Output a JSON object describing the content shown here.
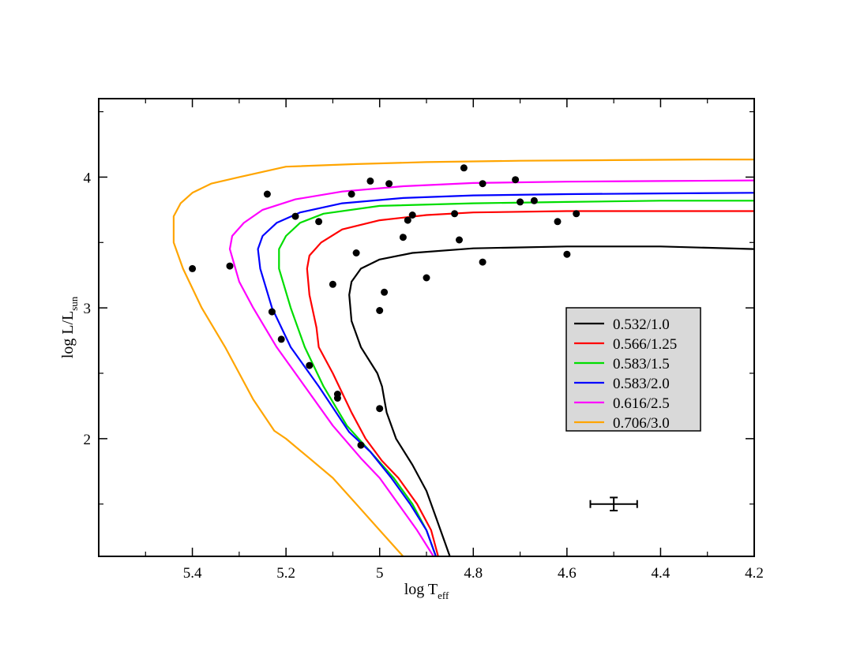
{
  "chart_data": {
    "type": "line",
    "xlabel": "log T",
    "xlabel_sub": "eff",
    "ylabel": "log L/L",
    "ylabel_sub": "sun",
    "xlim": [
      5.6,
      4.2
    ],
    "ylim": [
      1.1,
      4.6
    ],
    "x_reversed": true,
    "x_ticks": [
      5.4,
      5.2,
      5.0,
      4.8,
      4.6,
      4.4,
      4.2
    ],
    "x_tick_labels": [
      "5.4",
      "5.2",
      "5",
      "4.8",
      "4.6",
      "4.4",
      "4.2"
    ],
    "y_ticks": [
      2,
      3,
      4
    ],
    "y_tick_labels": [
      "2",
      "3",
      "4"
    ],
    "grid": false,
    "legend_position": "right-middle",
    "legend_background": "#d9d9d9",
    "series": [
      {
        "name": "0.532/1.0",
        "color": "#000000",
        "points": [
          [
            4.85,
            1.1
          ],
          [
            4.86,
            1.2
          ],
          [
            4.88,
            1.4
          ],
          [
            4.9,
            1.6
          ],
          [
            4.93,
            1.8
          ],
          [
            4.965,
            2.0
          ],
          [
            4.985,
            2.2
          ],
          [
            4.99,
            2.3
          ],
          [
            4.995,
            2.4
          ],
          [
            5.005,
            2.5
          ],
          [
            5.04,
            2.7
          ],
          [
            5.06,
            2.9
          ],
          [
            5.065,
            3.1
          ],
          [
            5.06,
            3.2
          ],
          [
            5.04,
            3.3
          ],
          [
            5.0,
            3.37
          ],
          [
            4.93,
            3.42
          ],
          [
            4.8,
            3.455
          ],
          [
            4.6,
            3.47
          ],
          [
            4.4,
            3.47
          ],
          [
            4.2,
            3.45
          ]
        ]
      },
      {
        "name": "0.566/1.25",
        "color": "#ff0000",
        "points": [
          [
            4.875,
            1.1
          ],
          [
            4.89,
            1.3
          ],
          [
            4.92,
            1.5
          ],
          [
            4.96,
            1.7
          ],
          [
            4.995,
            1.83
          ],
          [
            5.03,
            2.0
          ],
          [
            5.06,
            2.2
          ],
          [
            5.1,
            2.5
          ],
          [
            5.13,
            2.7
          ],
          [
            5.135,
            2.85
          ],
          [
            5.15,
            3.1
          ],
          [
            5.155,
            3.3
          ],
          [
            5.15,
            3.4
          ],
          [
            5.125,
            3.5
          ],
          [
            5.08,
            3.6
          ],
          [
            5.0,
            3.67
          ],
          [
            4.9,
            3.71
          ],
          [
            4.8,
            3.73
          ],
          [
            4.6,
            3.74
          ],
          [
            4.4,
            3.74
          ],
          [
            4.2,
            3.74
          ]
        ]
      },
      {
        "name": "0.583/1.5",
        "color": "#00dd00",
        "points": [
          [
            4.88,
            1.1
          ],
          [
            4.9,
            1.3
          ],
          [
            4.93,
            1.5
          ],
          [
            4.97,
            1.7
          ],
          [
            5.02,
            1.9
          ],
          [
            5.07,
            2.1
          ],
          [
            5.12,
            2.4
          ],
          [
            5.16,
            2.7
          ],
          [
            5.19,
            3.0
          ],
          [
            5.215,
            3.3
          ],
          [
            5.215,
            3.45
          ],
          [
            5.2,
            3.55
          ],
          [
            5.17,
            3.65
          ],
          [
            5.12,
            3.72
          ],
          [
            5.0,
            3.78
          ],
          [
            4.8,
            3.8
          ],
          [
            4.6,
            3.81
          ],
          [
            4.4,
            3.82
          ],
          [
            4.2,
            3.82
          ]
        ]
      },
      {
        "name": "0.583/2.0",
        "color": "#0000ff",
        "points": [
          [
            4.88,
            1.1
          ],
          [
            4.9,
            1.3
          ],
          [
            4.935,
            1.5
          ],
          [
            4.975,
            1.7
          ],
          [
            5.02,
            1.9
          ],
          [
            5.065,
            2.05
          ],
          [
            5.13,
            2.4
          ],
          [
            5.19,
            2.7
          ],
          [
            5.23,
            3.0
          ],
          [
            5.255,
            3.3
          ],
          [
            5.26,
            3.45
          ],
          [
            5.25,
            3.55
          ],
          [
            5.22,
            3.65
          ],
          [
            5.17,
            3.73
          ],
          [
            5.08,
            3.8
          ],
          [
            4.95,
            3.84
          ],
          [
            4.8,
            3.86
          ],
          [
            4.6,
            3.87
          ],
          [
            4.4,
            3.875
          ],
          [
            4.2,
            3.88
          ]
        ]
      },
      {
        "name": "0.616/2.5",
        "color": "#ff00ff",
        "points": [
          [
            4.885,
            1.1
          ],
          [
            4.92,
            1.3
          ],
          [
            4.96,
            1.5
          ],
          [
            5.0,
            1.7
          ],
          [
            5.04,
            1.85
          ],
          [
            5.1,
            2.1
          ],
          [
            5.16,
            2.4
          ],
          [
            5.22,
            2.7
          ],
          [
            5.27,
            3.0
          ],
          [
            5.3,
            3.2
          ],
          [
            5.32,
            3.45
          ],
          [
            5.315,
            3.55
          ],
          [
            5.29,
            3.65
          ],
          [
            5.25,
            3.75
          ],
          [
            5.18,
            3.83
          ],
          [
            5.08,
            3.89
          ],
          [
            4.95,
            3.93
          ],
          [
            4.8,
            3.955
          ],
          [
            4.6,
            3.965
          ],
          [
            4.4,
            3.97
          ],
          [
            4.2,
            3.975
          ]
        ]
      },
      {
        "name": "0.706/3.0",
        "color": "#ffa500",
        "points": [
          [
            4.95,
            1.1
          ],
          [
            5.0,
            1.3
          ],
          [
            5.05,
            1.5
          ],
          [
            5.1,
            1.7
          ],
          [
            5.15,
            1.85
          ],
          [
            5.2,
            2.0
          ],
          [
            5.225,
            2.06
          ],
          [
            5.27,
            2.3
          ],
          [
            5.33,
            2.7
          ],
          [
            5.38,
            3.0
          ],
          [
            5.42,
            3.3
          ],
          [
            5.44,
            3.5
          ],
          [
            5.44,
            3.7
          ],
          [
            5.425,
            3.8
          ],
          [
            5.4,
            3.88
          ],
          [
            5.36,
            3.95
          ],
          [
            5.3,
            4.0
          ],
          [
            5.2,
            4.08
          ],
          [
            5.05,
            4.1
          ],
          [
            4.9,
            4.115
          ],
          [
            4.7,
            4.125
          ],
          [
            4.5,
            4.13
          ],
          [
            4.3,
            4.135
          ],
          [
            4.2,
            4.135
          ]
        ]
      }
    ],
    "scatter": {
      "color": "#000000",
      "points": [
        [
          5.4,
          3.3
        ],
        [
          5.32,
          3.32
        ],
        [
          5.24,
          3.87
        ],
        [
          5.23,
          2.97
        ],
        [
          5.21,
          2.76
        ],
        [
          5.18,
          3.7
        ],
        [
          5.15,
          2.56
        ],
        [
          5.13,
          3.66
        ],
        [
          5.1,
          3.18
        ],
        [
          5.09,
          2.34
        ],
        [
          5.09,
          2.31
        ],
        [
          5.06,
          3.87
        ],
        [
          5.05,
          3.42
        ],
        [
          5.04,
          1.95
        ],
        [
          5.02,
          3.97
        ],
        [
          5.0,
          2.98
        ],
        [
          5.0,
          2.23
        ],
        [
          4.99,
          3.12
        ],
        [
          4.98,
          3.95
        ],
        [
          4.95,
          3.54
        ],
        [
          4.94,
          3.67
        ],
        [
          4.93,
          3.71
        ],
        [
          4.9,
          3.23
        ],
        [
          4.84,
          3.72
        ],
        [
          4.83,
          3.52
        ],
        [
          4.82,
          4.07
        ],
        [
          4.78,
          3.95
        ],
        [
          4.78,
          3.35
        ],
        [
          4.71,
          3.98
        ],
        [
          4.7,
          3.81
        ],
        [
          4.67,
          3.82
        ],
        [
          4.62,
          3.66
        ],
        [
          4.6,
          3.41
        ],
        [
          4.58,
          3.72
        ]
      ]
    },
    "error_bar": {
      "x": 4.5,
      "y": 1.5,
      "x_err": 0.05,
      "y_err": 0.05
    }
  }
}
